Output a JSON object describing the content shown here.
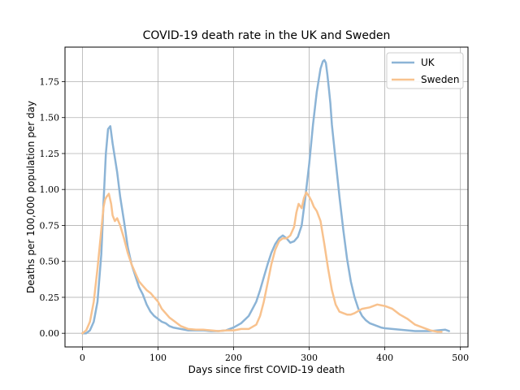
{
  "chart_data": {
    "type": "line",
    "title": "COVID-19 death rate in the UK and Sweden",
    "xlabel": "Days since first COVID-19 death",
    "ylabel": "Deaths per 100,000 population per day",
    "xlim": [
      -23,
      510
    ],
    "ylim": [
      -0.095,
      1.99
    ],
    "xticks": [
      0,
      100,
      200,
      300,
      400,
      500
    ],
    "yticks": [
      0,
      0.25,
      0.5,
      0.75,
      1.0,
      1.25,
      1.5,
      1.75
    ],
    "ytick_labels": [
      "0.00",
      "0.25",
      "0.50",
      "0.75",
      "1.00",
      "1.25",
      "1.50",
      "1.75"
    ],
    "grid": true,
    "legend_position": "top-right",
    "series": [
      {
        "name": "UK",
        "color": "#8cb4d6",
        "x": [
          0,
          5,
          10,
          15,
          20,
          25,
          28,
          31,
          34,
          37,
          40,
          43,
          46,
          50,
          55,
          60,
          65,
          70,
          75,
          80,
          85,
          90,
          95,
          100,
          105,
          110,
          115,
          120,
          130,
          140,
          150,
          160,
          170,
          180,
          190,
          200,
          210,
          220,
          225,
          230,
          235,
          240,
          245,
          250,
          255,
          260,
          265,
          270,
          275,
          280,
          285,
          290,
          295,
          300,
          305,
          310,
          315,
          318,
          320,
          322,
          324,
          326,
          328,
          330,
          335,
          340,
          345,
          350,
          355,
          360,
          365,
          370,
          375,
          380,
          385,
          390,
          395,
          400,
          410,
          420,
          430,
          440,
          450,
          460,
          470,
          480,
          485
        ],
        "y": [
          0,
          0,
          0.02,
          0.08,
          0.22,
          0.55,
          0.92,
          1.25,
          1.42,
          1.44,
          1.32,
          1.22,
          1.12,
          0.95,
          0.78,
          0.6,
          0.48,
          0.4,
          0.32,
          0.27,
          0.2,
          0.15,
          0.12,
          0.1,
          0.08,
          0.07,
          0.05,
          0.04,
          0.03,
          0.02,
          0.02,
          0.02,
          0.015,
          0.015,
          0.02,
          0.04,
          0.07,
          0.12,
          0.17,
          0.22,
          0.3,
          0.39,
          0.48,
          0.56,
          0.62,
          0.66,
          0.68,
          0.66,
          0.63,
          0.64,
          0.67,
          0.75,
          0.95,
          1.18,
          1.45,
          1.68,
          1.84,
          1.89,
          1.9,
          1.88,
          1.8,
          1.7,
          1.6,
          1.45,
          1.2,
          0.95,
          0.72,
          0.52,
          0.36,
          0.25,
          0.17,
          0.12,
          0.09,
          0.07,
          0.06,
          0.05,
          0.04,
          0.035,
          0.03,
          0.025,
          0.02,
          0.015,
          0.015,
          0.015,
          0.02,
          0.025,
          0.015
        ]
      },
      {
        "name": "Sweden",
        "color": "#f8c28e",
        "x": [
          0,
          5,
          10,
          15,
          20,
          25,
          28,
          30,
          32,
          35,
          38,
          40,
          43,
          46,
          50,
          55,
          60,
          65,
          70,
          75,
          80,
          85,
          90,
          95,
          100,
          105,
          110,
          115,
          120,
          130,
          140,
          150,
          160,
          170,
          180,
          190,
          200,
          210,
          220,
          230,
          235,
          240,
          245,
          250,
          255,
          260,
          265,
          270,
          275,
          280,
          283,
          286,
          290,
          293,
          296,
          300,
          303,
          306,
          310,
          315,
          320,
          325,
          330,
          335,
          340,
          345,
          350,
          355,
          360,
          370,
          380,
          390,
          400,
          410,
          420,
          430,
          440,
          450,
          460,
          470,
          475
        ],
        "y": [
          0,
          0.02,
          0.08,
          0.22,
          0.45,
          0.72,
          0.88,
          0.93,
          0.95,
          0.97,
          0.9,
          0.82,
          0.78,
          0.8,
          0.75,
          0.66,
          0.56,
          0.48,
          0.42,
          0.36,
          0.33,
          0.3,
          0.28,
          0.25,
          0.22,
          0.17,
          0.14,
          0.11,
          0.09,
          0.05,
          0.03,
          0.025,
          0.025,
          0.02,
          0.015,
          0.02,
          0.02,
          0.03,
          0.03,
          0.06,
          0.12,
          0.22,
          0.35,
          0.48,
          0.58,
          0.64,
          0.66,
          0.66,
          0.68,
          0.74,
          0.84,
          0.9,
          0.87,
          0.94,
          0.98,
          0.95,
          0.92,
          0.88,
          0.85,
          0.78,
          0.62,
          0.45,
          0.3,
          0.2,
          0.15,
          0.14,
          0.13,
          0.13,
          0.14,
          0.17,
          0.18,
          0.2,
          0.19,
          0.17,
          0.13,
          0.1,
          0.06,
          0.04,
          0.02,
          0.01,
          0.01
        ]
      }
    ]
  }
}
